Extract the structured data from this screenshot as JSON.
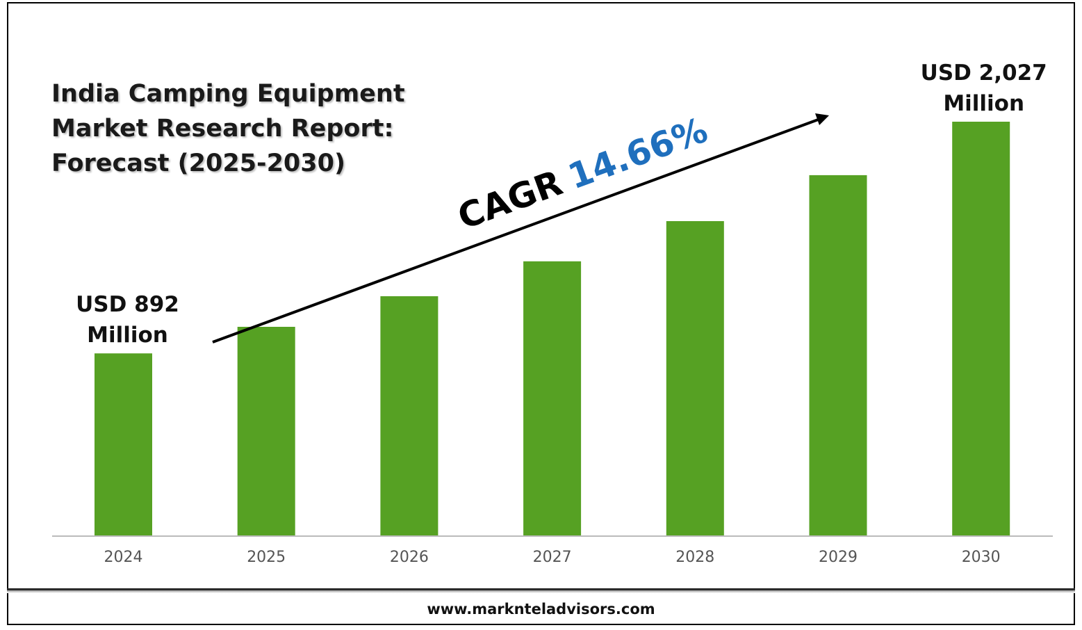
{
  "title": {
    "line1": "India Camping Equipment",
    "line2": "Market Research Report:",
    "line3": "Forecast (2025-2030)"
  },
  "cagr": {
    "label": "CAGR",
    "value": "14.66%"
  },
  "footer": {
    "url": "www.marknteladvisors.com"
  },
  "colors": {
    "bar": "#56a123",
    "cagr_value": "#1f6fbd",
    "axis": "#bbbbbb"
  },
  "chart_data": {
    "type": "bar",
    "categories": [
      "2024",
      "2025",
      "2026",
      "2027",
      "2028",
      "2029",
      "2030"
    ],
    "values": [
      892,
      1022,
      1172,
      1343,
      1540,
      1765,
      2027
    ],
    "annotations": [
      {
        "category": "2024",
        "lines": [
          "USD 892",
          "Million"
        ]
      },
      {
        "category": "2030",
        "lines": [
          "USD 2,027",
          "Million"
        ]
      }
    ],
    "ylim": [
      0,
      2100
    ],
    "grid": false,
    "legend": "none"
  }
}
